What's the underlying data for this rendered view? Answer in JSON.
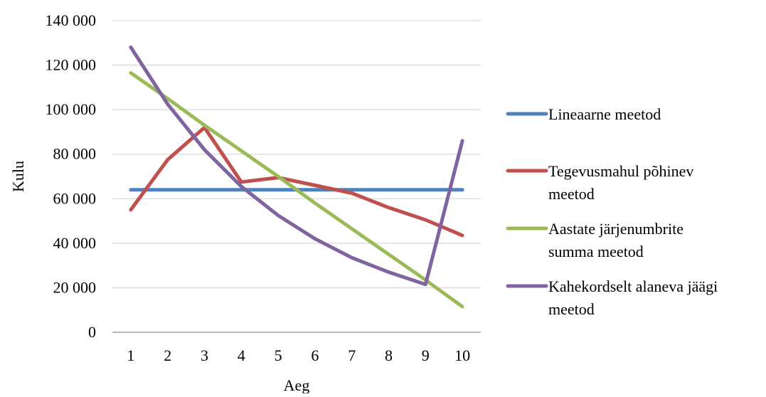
{
  "chart_data": {
    "type": "line",
    "title": "",
    "xlabel": "Aeg",
    "ylabel": "Kulu",
    "categories": [
      "1",
      "2",
      "3",
      "4",
      "5",
      "6",
      "7",
      "8",
      "9",
      "10"
    ],
    "ylim": [
      0,
      140000
    ],
    "yticks": [
      {
        "value": 0,
        "label": "0"
      },
      {
        "value": 20000,
        "label": "20 000"
      },
      {
        "value": 40000,
        "label": "40 000"
      },
      {
        "value": 60000,
        "label": "60 000"
      },
      {
        "value": 80000,
        "label": "80 000"
      },
      {
        "value": 100000,
        "label": "100 000"
      },
      {
        "value": 120000,
        "label": "120 000"
      },
      {
        "value": 140000,
        "label": "140 000"
      }
    ],
    "grid": "horizontal",
    "legend_position": "right",
    "series": [
      {
        "name": "Lineaarne meetod",
        "legend_lines": [
          "Lineaarne meetod"
        ],
        "color": "#4F81BD",
        "values": [
          64000,
          64000,
          64000,
          64000,
          64000,
          64000,
          64000,
          64000,
          64000,
          64000
        ]
      },
      {
        "name": "Tegevusmahul põhinev meetod",
        "legend_lines": [
          "Tegevusmahul põhinev",
          "meetod"
        ],
        "color": "#C0504D",
        "values": [
          55000,
          77500,
          92000,
          67500,
          69500,
          66000,
          62500,
          56000,
          50500,
          43500
        ]
      },
      {
        "name": "Aastate järjenumbrite summa meetod",
        "legend_lines": [
          "Aastate järjenumbrite",
          "summa meetod"
        ],
        "color": "#9BBB59",
        "values": [
          116500,
          105000,
          93000,
          81500,
          70000,
          58000,
          46500,
          35000,
          23500,
          11500
        ]
      },
      {
        "name": "Kahekordselt alaneva jäägi meetod",
        "legend_lines": [
          "Kahekordselt alaneva jäägi",
          "meetod"
        ],
        "color": "#8064A2",
        "values": [
          128000,
          102500,
          82000,
          65500,
          52500,
          42000,
          33500,
          27000,
          21500,
          86000
        ]
      }
    ]
  }
}
